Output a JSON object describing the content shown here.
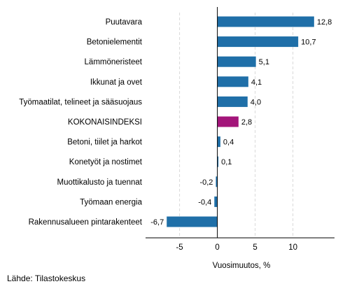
{
  "chart_data": {
    "type": "bar",
    "orientation": "horizontal",
    "categories": [
      "Puutavara",
      "Betonielementit",
      "Lämmöneristeet",
      "Ikkunat ja ovet",
      "Työmaatilat, telineet ja sääsuojaus",
      "KOKONAISINDEKSI",
      "Betoni, tiilet ja harkot",
      "Konetyöt ja nostimet",
      "Muottikalusto ja tuennat",
      "Työmaan energia",
      "Rakennusalueen pintarakenteet"
    ],
    "values": [
      12.8,
      10.7,
      5.1,
      4.1,
      4.0,
      2.8,
      0.4,
      0.1,
      -0.2,
      -0.4,
      -6.7
    ],
    "value_labels": [
      "12,8",
      "10,7",
      "5,1",
      "4,1",
      "4,0",
      "2,8",
      "0,4",
      "0,1",
      "-0,2",
      "-0,4",
      "-6,7"
    ],
    "highlight_index": 5,
    "xlabel": "Vuosimuutos, %",
    "x_ticks": [
      -5,
      0,
      5,
      10
    ],
    "x_tick_labels": [
      "-5",
      "0",
      "5",
      "10"
    ],
    "xlim": [
      -9.5,
      15.5
    ],
    "grid": "vertical dashed",
    "colors": {
      "bar": "#1f6fa8",
      "highlight": "#a3157a",
      "grid": "#d9d9d9",
      "zero_line": "#000000"
    }
  },
  "source": "Lähde: Tilastokeskus"
}
